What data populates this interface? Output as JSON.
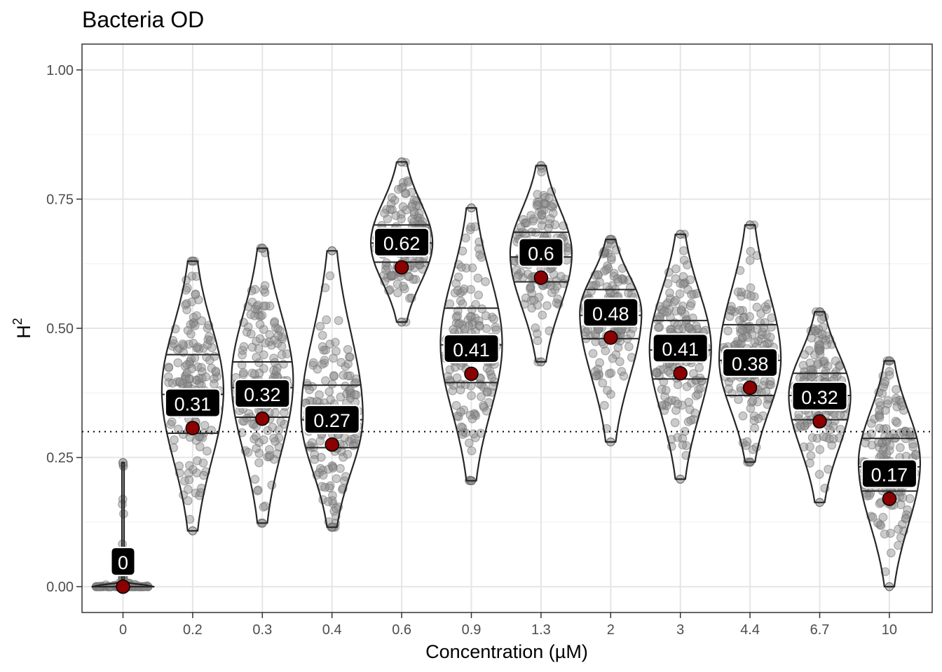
{
  "chart_data": {
    "type": "violin",
    "title": "Bacteria OD",
    "xlabel": "Concentration (µM)",
    "ylabel_base": "H",
    "ylabel_sup": "2",
    "ylim": [
      -0.05,
      1.05
    ],
    "yticks": [
      0.0,
      0.25,
      0.5,
      0.75,
      1.0
    ],
    "ytick_labels": [
      "0.00",
      "0.25",
      "0.50",
      "0.75",
      "1.00"
    ],
    "grid": true,
    "reference_line": 0.3,
    "colors": {
      "violin_outline": "#262626",
      "jitter_point": "#8c8c8c",
      "mean_point": "#8b0000",
      "label_bg": "#000000",
      "label_text": "#ffffff",
      "grid_major": "#e5e5e5",
      "grid_minor": "#f2f2f2"
    },
    "groups": [
      {
        "category": "0",
        "label": "0",
        "mean": 0.0,
        "min": 0.0,
        "max": 0.24,
        "q1": 0.0,
        "median": 0.0,
        "q3": 0.0,
        "peak": 0.005
      },
      {
        "category": "0.2",
        "label": "0.31",
        "mean": 0.307,
        "min": 0.108,
        "max": 0.63,
        "q1": 0.297,
        "median": 0.372,
        "q3": 0.449,
        "peak": 0.38
      },
      {
        "category": "0.3",
        "label": "0.32",
        "mean": 0.325,
        "min": 0.123,
        "max": 0.655,
        "q1": 0.328,
        "median": 0.385,
        "q3": 0.435,
        "peak": 0.4
      },
      {
        "category": "0.4",
        "label": "0.27",
        "mean": 0.275,
        "min": 0.115,
        "max": 0.65,
        "q1": 0.269,
        "median": 0.323,
        "q3": 0.39,
        "peak": 0.33
      },
      {
        "category": "0.6",
        "label": "0.62",
        "mean": 0.618,
        "min": 0.512,
        "max": 0.822,
        "q1": 0.628,
        "median": 0.665,
        "q3": 0.7,
        "peak": 0.665
      },
      {
        "category": "0.9",
        "label": "0.41",
        "mean": 0.412,
        "min": 0.205,
        "max": 0.733,
        "q1": 0.395,
        "median": 0.468,
        "q3": 0.539,
        "peak": 0.47
      },
      {
        "category": "1.3",
        "label": "0.6",
        "mean": 0.598,
        "min": 0.435,
        "max": 0.815,
        "q1": 0.59,
        "median": 0.638,
        "q3": 0.686,
        "peak": 0.645
      },
      {
        "category": "2",
        "label": "0.48",
        "mean": 0.482,
        "min": 0.28,
        "max": 0.672,
        "q1": 0.48,
        "median": 0.525,
        "q3": 0.575,
        "peak": 0.53
      },
      {
        "category": "3",
        "label": "0.41",
        "mean": 0.413,
        "min": 0.208,
        "max": 0.682,
        "q1": 0.402,
        "median": 0.458,
        "q3": 0.515,
        "peak": 0.46
      },
      {
        "category": "4.4",
        "label": "0.38",
        "mean": 0.385,
        "min": 0.241,
        "max": 0.7,
        "q1": 0.37,
        "median": 0.438,
        "q3": 0.507,
        "peak": 0.44
      },
      {
        "category": "6.7",
        "label": "0.32",
        "mean": 0.32,
        "min": 0.163,
        "max": 0.532,
        "q1": 0.323,
        "median": 0.37,
        "q3": 0.413,
        "peak": 0.37
      },
      {
        "category": "10",
        "label": "0.17",
        "mean": 0.17,
        "min": 0.0,
        "max": 0.437,
        "q1": 0.185,
        "median": 0.232,
        "q3": 0.287,
        "peak": 0.24
      }
    ]
  }
}
